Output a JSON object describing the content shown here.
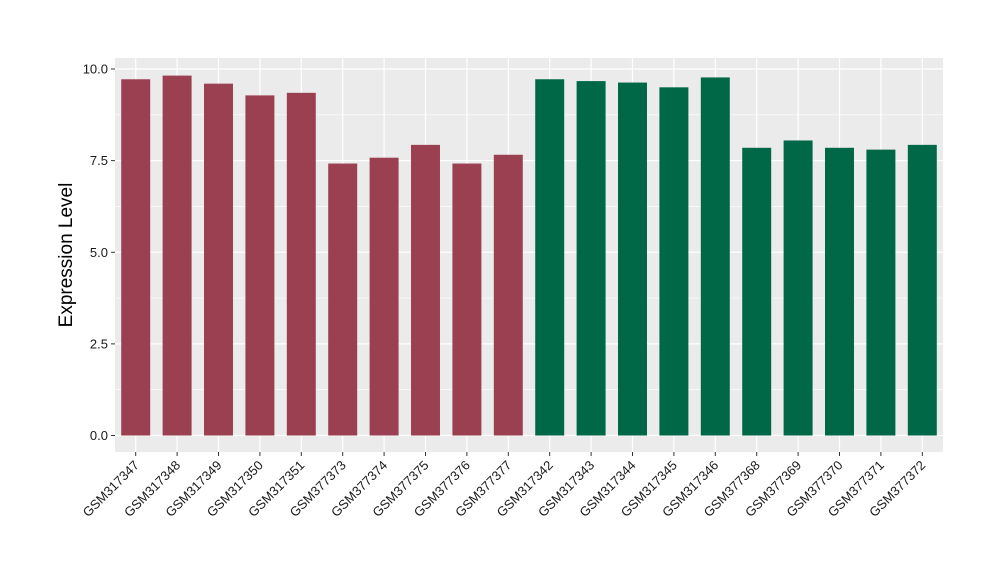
{
  "chart_data": {
    "type": "bar",
    "title": "",
    "xlabel": "",
    "ylabel": "Expression Level",
    "ylim": [
      -0.45,
      10.3
    ],
    "yticks": [
      0.0,
      2.5,
      5.0,
      7.5,
      10.0
    ],
    "ytick_labels": [
      "0.0",
      "2.5",
      "5.0",
      "7.5",
      "10.0"
    ],
    "grid": true,
    "legend": "none",
    "colors": {
      "group_a": "#9b4050",
      "group_b": "#006847",
      "panel_bg": "#ebebeb",
      "grid": "#ffffff"
    },
    "categories": [
      "GSM317347",
      "GSM317348",
      "GSM317349",
      "GSM317350",
      "GSM317351",
      "GSM377373",
      "GSM377374",
      "GSM377375",
      "GSM377376",
      "GSM377377",
      "GSM317342",
      "GSM317343",
      "GSM317344",
      "GSM317345",
      "GSM317346",
      "GSM377368",
      "GSM377369",
      "GSM377370",
      "GSM377371",
      "GSM377372"
    ],
    "values": [
      9.72,
      9.82,
      9.6,
      9.28,
      9.35,
      7.42,
      7.58,
      7.93,
      7.42,
      7.66,
      9.72,
      9.67,
      9.63,
      9.5,
      9.77,
      7.85,
      8.05,
      7.85,
      7.8,
      7.93
    ],
    "bar_colors": [
      "#9b4050",
      "#9b4050",
      "#9b4050",
      "#9b4050",
      "#9b4050",
      "#9b4050",
      "#9b4050",
      "#9b4050",
      "#9b4050",
      "#9b4050",
      "#006847",
      "#006847",
      "#006847",
      "#006847",
      "#006847",
      "#006847",
      "#006847",
      "#006847",
      "#006847",
      "#006847"
    ]
  }
}
